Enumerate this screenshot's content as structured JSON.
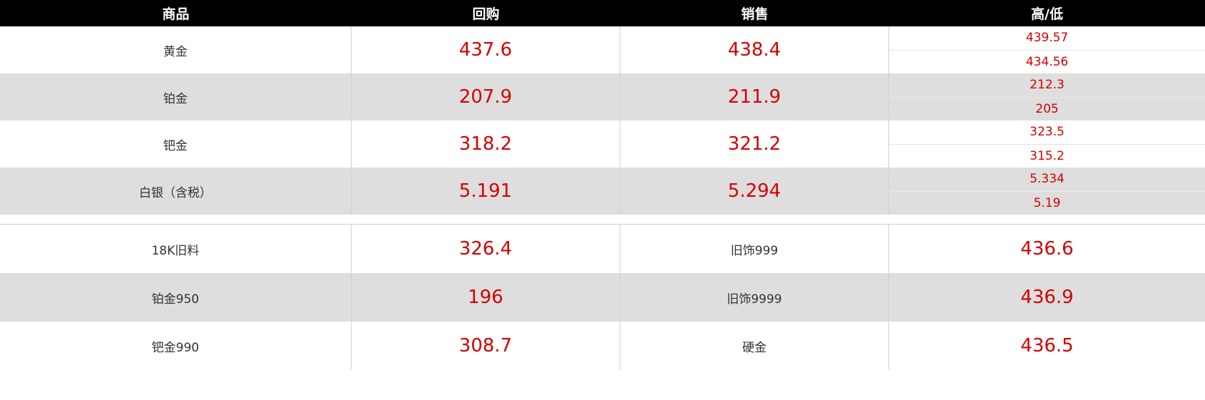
{
  "header": {
    "col1": "商品",
    "col2": "回购",
    "col3": "销售",
    "col4": "高/低"
  },
  "metals": [
    {
      "name": "黄金",
      "buy": "437.6",
      "sell": "438.4",
      "high": "439.57",
      "low": "434.56"
    },
    {
      "name": "铂金",
      "buy": "207.9",
      "sell": "211.9",
      "high": "212.3",
      "low": "205"
    },
    {
      "name": "钯金",
      "buy": "318.2",
      "sell": "321.2",
      "high": "323.5",
      "low": "315.2"
    },
    {
      "name": "白银（含税）",
      "buy": "5.191",
      "sell": "5.294",
      "high": "5.334",
      "low": "5.19"
    }
  ],
  "recycle": [
    {
      "name1": "18K旧料",
      "price1": "326.4",
      "name2": "旧饰999",
      "price2": "436.6"
    },
    {
      "name1": "铂金950",
      "price1": "196",
      "name2": "旧饰9999",
      "price2": "436.9"
    },
    {
      "name1": "钯金990",
      "price1": "308.7",
      "name2": "硬金",
      "price2": "436.5"
    }
  ],
  "colors": {
    "price": "#d40000",
    "header_bg": "#000000",
    "alt_row": "#dedede"
  }
}
